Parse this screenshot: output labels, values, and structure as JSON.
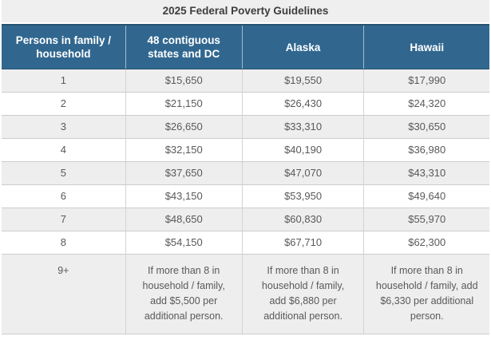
{
  "header": {
    "title": "2025 Federal Poverty Guidelines"
  },
  "colors": {
    "header_bg": "#31678f",
    "header_border_dark": "#27536e",
    "header_divider": "#a9c0d2",
    "title_bar_bg": "#efefef",
    "title_text": "#3d3d3d",
    "row_alt_bg": "#eeeeee",
    "row_bg": "#ffffff",
    "grid_line": "#cccccc",
    "body_text": "#58595b"
  },
  "chart_data": {
    "type": "table",
    "title": "2025 Federal Poverty Guidelines",
    "columns": [
      "Persons in family / household",
      "48 contiguous states and DC",
      "Alaska",
      "Hawaii"
    ],
    "rows": [
      [
        "1",
        "$15,650",
        "$19,550",
        "$17,990"
      ],
      [
        "2",
        "$21,150",
        "$26,430",
        "$24,320"
      ],
      [
        "3",
        "$26,650",
        "$33,310",
        "$30,650"
      ],
      [
        "4",
        "$32,150",
        "$40,190",
        "$36,980"
      ],
      [
        "5",
        "$37,650",
        "$47,070",
        "$43,310"
      ],
      [
        "6",
        "$43,150",
        "$53,950",
        "$49,640"
      ],
      [
        "7",
        "$48,650",
        "$60,830",
        "$55,970"
      ],
      [
        "8",
        "$54,150",
        "$67,710",
        "$62,300"
      ],
      [
        "9+",
        "If more than 8 in household / family, add $5,500 per additional person.",
        "If more than 8 in household / family, add $6,880 per additional person.",
        "If more than 8 in household / family, add $6,330 per additional person."
      ]
    ],
    "layout_hints": {
      "striped_rows": "odd rows shaded",
      "all_cells_centered": true,
      "header_style": "dark blue band with white bold text"
    }
  }
}
